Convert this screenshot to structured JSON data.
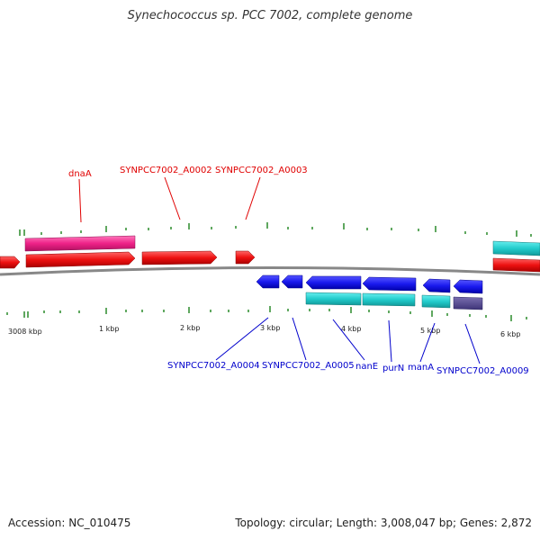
{
  "title": "Synechococcus sp. PCC 7002, complete genome",
  "footer": {
    "accession": "Accession: NC_010475",
    "summary": "Topology: circular; Length: 3,008,047 bp; Genes: 2,872"
  },
  "ticks": [
    "3008 kbp",
    "1 kbp",
    "2 kbp",
    "3 kbp",
    "4 kbp",
    "5 kbp",
    "6 kbp"
  ],
  "labels_top": [
    "dnaA",
    "SYNPCC7002_A0002",
    "SYNPCC7002_A0003"
  ],
  "labels_bottom": [
    "SYNPCC7002_A0004",
    "SYNPCC7002_A0005",
    "nanE",
    "purN",
    "manA",
    "SYNPCC7002_A0009"
  ],
  "colors": {
    "forward_cds": "#ee1111",
    "reverse_cds": "#1a1aee",
    "forward_feature": "#ff3399",
    "reverse_feature": "#22cccc",
    "backbone": "#888888",
    "tick": "#2a8a2a"
  }
}
